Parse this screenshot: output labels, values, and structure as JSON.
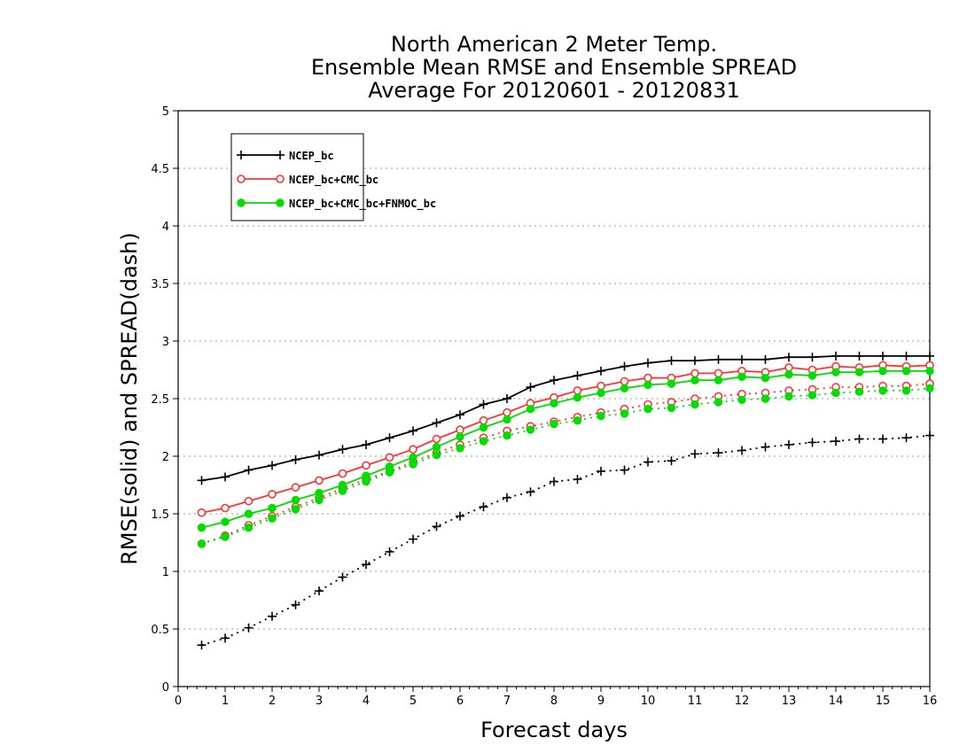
{
  "chart_data": {
    "type": "line",
    "title_lines": [
      "North American 2 Meter Temp.",
      "Ensemble Mean RMSE and Ensemble SPREAD",
      "Average For 20120601 - 20120831"
    ],
    "xlabel": "Forecast days",
    "ylabel": "RMSE(solid) and SPREAD(dash)",
    "xlim": [
      0,
      16
    ],
    "ylim": [
      0,
      5
    ],
    "xticks": [
      "0",
      "1",
      "2",
      "3",
      "4",
      "5",
      "6",
      "7",
      "8",
      "9",
      "10",
      "11",
      "12",
      "13",
      "14",
      "15",
      "16"
    ],
    "yticks": [
      "0",
      "0.5",
      "1",
      "1.5",
      "2",
      "2.5",
      "3",
      "3.5",
      "4",
      "4.5",
      "5"
    ],
    "grid": "horizontal dotted",
    "legend_position": "top-left",
    "x": [
      0.5,
      1,
      1.5,
      2,
      2.5,
      3,
      3.5,
      4,
      4.5,
      5,
      5.5,
      6,
      6.5,
      7,
      7.5,
      8,
      8.5,
      9,
      9.5,
      10,
      10.5,
      11,
      11.5,
      12,
      12.5,
      13,
      13.5,
      14,
      14.5,
      15,
      15.5,
      16
    ],
    "series": [
      {
        "legend": "NCEP_bc",
        "color": "#000000",
        "marker": "plus",
        "rmse": [
          1.79,
          1.82,
          1.88,
          1.92,
          1.97,
          2.01,
          2.06,
          2.1,
          2.16,
          2.22,
          2.29,
          2.36,
          2.45,
          2.5,
          2.6,
          2.66,
          2.7,
          2.74,
          2.78,
          2.81,
          2.83,
          2.83,
          2.84,
          2.84,
          2.84,
          2.86,
          2.86,
          2.87,
          2.87,
          2.87,
          2.87,
          2.87
        ],
        "spread": [
          0.36,
          0.42,
          0.51,
          0.61,
          0.71,
          0.83,
          0.95,
          1.06,
          1.17,
          1.28,
          1.39,
          1.48,
          1.56,
          1.64,
          1.69,
          1.78,
          1.8,
          1.87,
          1.88,
          1.95,
          1.96,
          2.02,
          2.03,
          2.05,
          2.08,
          2.1,
          2.12,
          2.13,
          2.15,
          2.15,
          2.16,
          2.18
        ]
      },
      {
        "legend": "NCEP_bc+CMC_bc",
        "color": "#ff3333",
        "marker": "open-circle",
        "rmse": [
          1.51,
          1.55,
          1.61,
          1.67,
          1.73,
          1.79,
          1.85,
          1.92,
          1.99,
          2.06,
          2.15,
          2.23,
          2.31,
          2.38,
          2.46,
          2.51,
          2.57,
          2.61,
          2.65,
          2.68,
          2.68,
          2.72,
          2.72,
          2.74,
          2.73,
          2.77,
          2.75,
          2.78,
          2.77,
          2.79,
          2.78,
          2.79
        ],
        "spread": [
          1.24,
          1.31,
          1.4,
          1.48,
          1.56,
          1.64,
          1.72,
          1.8,
          1.87,
          1.95,
          2.03,
          2.1,
          2.16,
          2.22,
          2.26,
          2.3,
          2.34,
          2.38,
          2.41,
          2.45,
          2.47,
          2.5,
          2.52,
          2.54,
          2.55,
          2.57,
          2.58,
          2.6,
          2.6,
          2.61,
          2.61,
          2.63
        ]
      },
      {
        "legend": "NCEP_bc+CMC_bc+FNMOC_bc",
        "color": "#00dd00",
        "marker": "filled-circle",
        "rmse": [
          1.38,
          1.43,
          1.5,
          1.55,
          1.62,
          1.68,
          1.75,
          1.83,
          1.91,
          1.99,
          2.08,
          2.17,
          2.25,
          2.32,
          2.41,
          2.46,
          2.51,
          2.55,
          2.59,
          2.62,
          2.63,
          2.66,
          2.66,
          2.69,
          2.68,
          2.71,
          2.7,
          2.73,
          2.73,
          2.74,
          2.74,
          2.74
        ],
        "spread": [
          1.24,
          1.3,
          1.38,
          1.46,
          1.54,
          1.62,
          1.7,
          1.78,
          1.86,
          1.93,
          2.01,
          2.07,
          2.13,
          2.18,
          2.23,
          2.28,
          2.31,
          2.35,
          2.37,
          2.41,
          2.42,
          2.45,
          2.47,
          2.49,
          2.5,
          2.52,
          2.53,
          2.55,
          2.56,
          2.57,
          2.57,
          2.59
        ]
      }
    ]
  }
}
